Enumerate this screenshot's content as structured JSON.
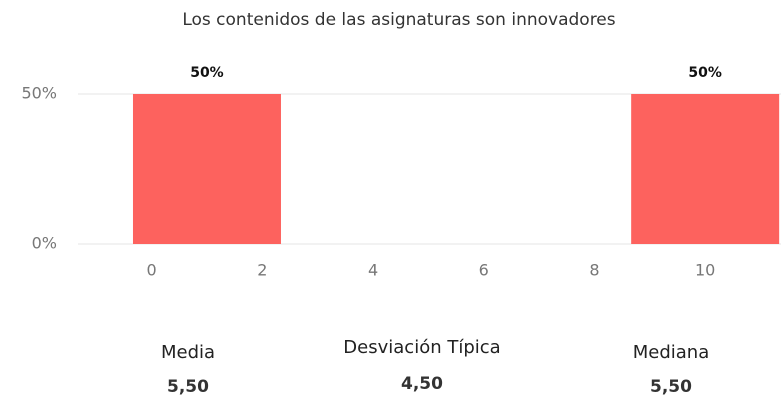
{
  "chart_data": {
    "type": "bar",
    "title": "Los contenidos de las asignaturas son innovadores",
    "x": [
      1,
      10
    ],
    "values": [
      50,
      50
    ],
    "value_labels": [
      "50%",
      "50%"
    ],
    "color": "#fd625e",
    "xlim": [
      -1.33,
      11.37
    ],
    "xticks": [
      0,
      2,
      4,
      6,
      8,
      10
    ],
    "ylim": [
      0,
      50
    ],
    "yticks": [
      {
        "value": 0,
        "label": "0%"
      },
      {
        "value": 50,
        "label": "50%"
      }
    ],
    "grid": true
  },
  "stats": [
    {
      "label": "Media",
      "value": "5,50"
    },
    {
      "label": "Desviación Típica",
      "value": "4,50"
    },
    {
      "label": "Mediana",
      "value": "5,50"
    }
  ]
}
